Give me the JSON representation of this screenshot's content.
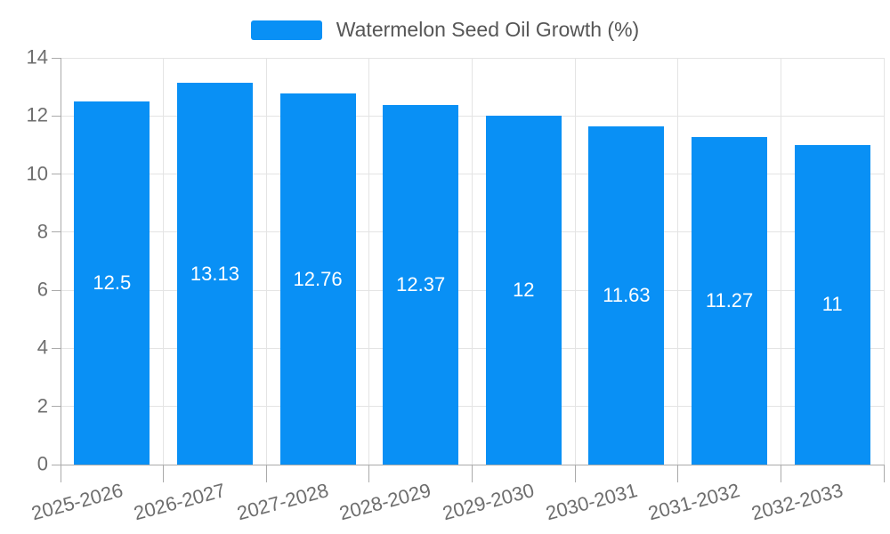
{
  "chart_data": {
    "type": "bar",
    "title": "Watermelon Seed Oil Growth (%)",
    "legend": [
      {
        "label": "Watermelon Seed Oil Growth (%)"
      }
    ],
    "legend_position": "top-center",
    "categories": [
      "2025-2026",
      "2026-2027",
      "2027-2028",
      "2028-2029",
      "2029-2030",
      "2030-2031",
      "2031-2032",
      "2032-2033"
    ],
    "values": [
      12.5,
      13.13,
      12.76,
      12.37,
      12,
      11.63,
      11.27,
      11
    ],
    "value_labels": [
      "12.5",
      "13.13",
      "12.76",
      "12.37",
      "12",
      "11.63",
      "11.27",
      "11"
    ],
    "value_label_position": "inside-center",
    "xlabel": "",
    "ylabel": "",
    "ylim": [
      0,
      14
    ],
    "yticks": [
      0,
      2,
      4,
      6,
      8,
      10,
      12,
      14
    ],
    "grid": true,
    "x_label_rotation_deg": -15,
    "colors": {
      "bar": "#0990f5",
      "bar_label": "#ffffff",
      "axis_text": "#6e6e6e",
      "legend_text": "#565656",
      "grid_line": "#e4e4e4",
      "axis_line": "#aaaaaa"
    }
  }
}
